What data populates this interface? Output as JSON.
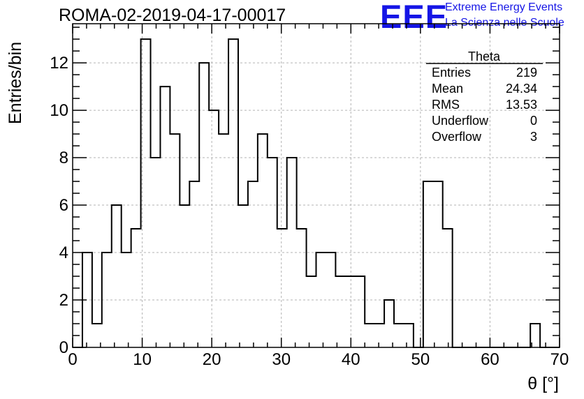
{
  "title": "ROMA-02-2019-04-17-00017",
  "logo": {
    "mark": "EEE",
    "line1": "Extreme Energy Events",
    "line2": "La Scienza nelle Scuole",
    "color": "#1515e6"
  },
  "stats": {
    "name": "Theta",
    "rows": [
      {
        "label": "Entries",
        "value": "219"
      },
      {
        "label": "Mean",
        "value": "24.34"
      },
      {
        "label": "RMS",
        "value": "13.53"
      },
      {
        "label": "Underflow",
        "value": "0"
      },
      {
        "label": "Overflow",
        "value": "3"
      }
    ]
  },
  "chart_data": {
    "type": "bar",
    "style": "step-histogram",
    "xlabel": "θ [°]",
    "ylabel": "Entries/bin",
    "xlim": [
      0,
      70
    ],
    "ylim": [
      0,
      13.65
    ],
    "xticks": [
      0,
      10,
      20,
      30,
      40,
      50,
      60,
      70
    ],
    "yticks": [
      0,
      2,
      4,
      6,
      8,
      10,
      12
    ],
    "grid": true,
    "bin_edges": [
      0,
      1.4,
      2.8,
      4.2,
      5.6,
      7,
      8.4,
      9.8,
      11.2,
      12.6,
      14,
      15.4,
      16.8,
      18.2,
      19.6,
      21,
      22.4,
      23.8,
      25.2,
      26.6,
      28,
      29.4,
      30.8,
      32.2,
      33.6,
      35,
      36.4,
      37.8,
      39.2,
      40.6,
      42,
      43.4,
      44.8,
      46.2,
      47.6,
      49,
      50.4,
      51.8,
      53.2,
      54.6,
      56,
      57.4,
      58.8,
      60.2,
      61.6,
      63,
      64.4,
      65.8,
      67.2,
      68.6,
      70
    ],
    "values": [
      0,
      4,
      1,
      4,
      6,
      4,
      5,
      13,
      8,
      11,
      9,
      6,
      7,
      12,
      10,
      9,
      13,
      6,
      7,
      9,
      8,
      5,
      8,
      5,
      3,
      4,
      4,
      3,
      3,
      3,
      1,
      1,
      2,
      1,
      1,
      0,
      7,
      7,
      5,
      0,
      0,
      0,
      0,
      0,
      0,
      0,
      0,
      1,
      0,
      0
    ]
  }
}
